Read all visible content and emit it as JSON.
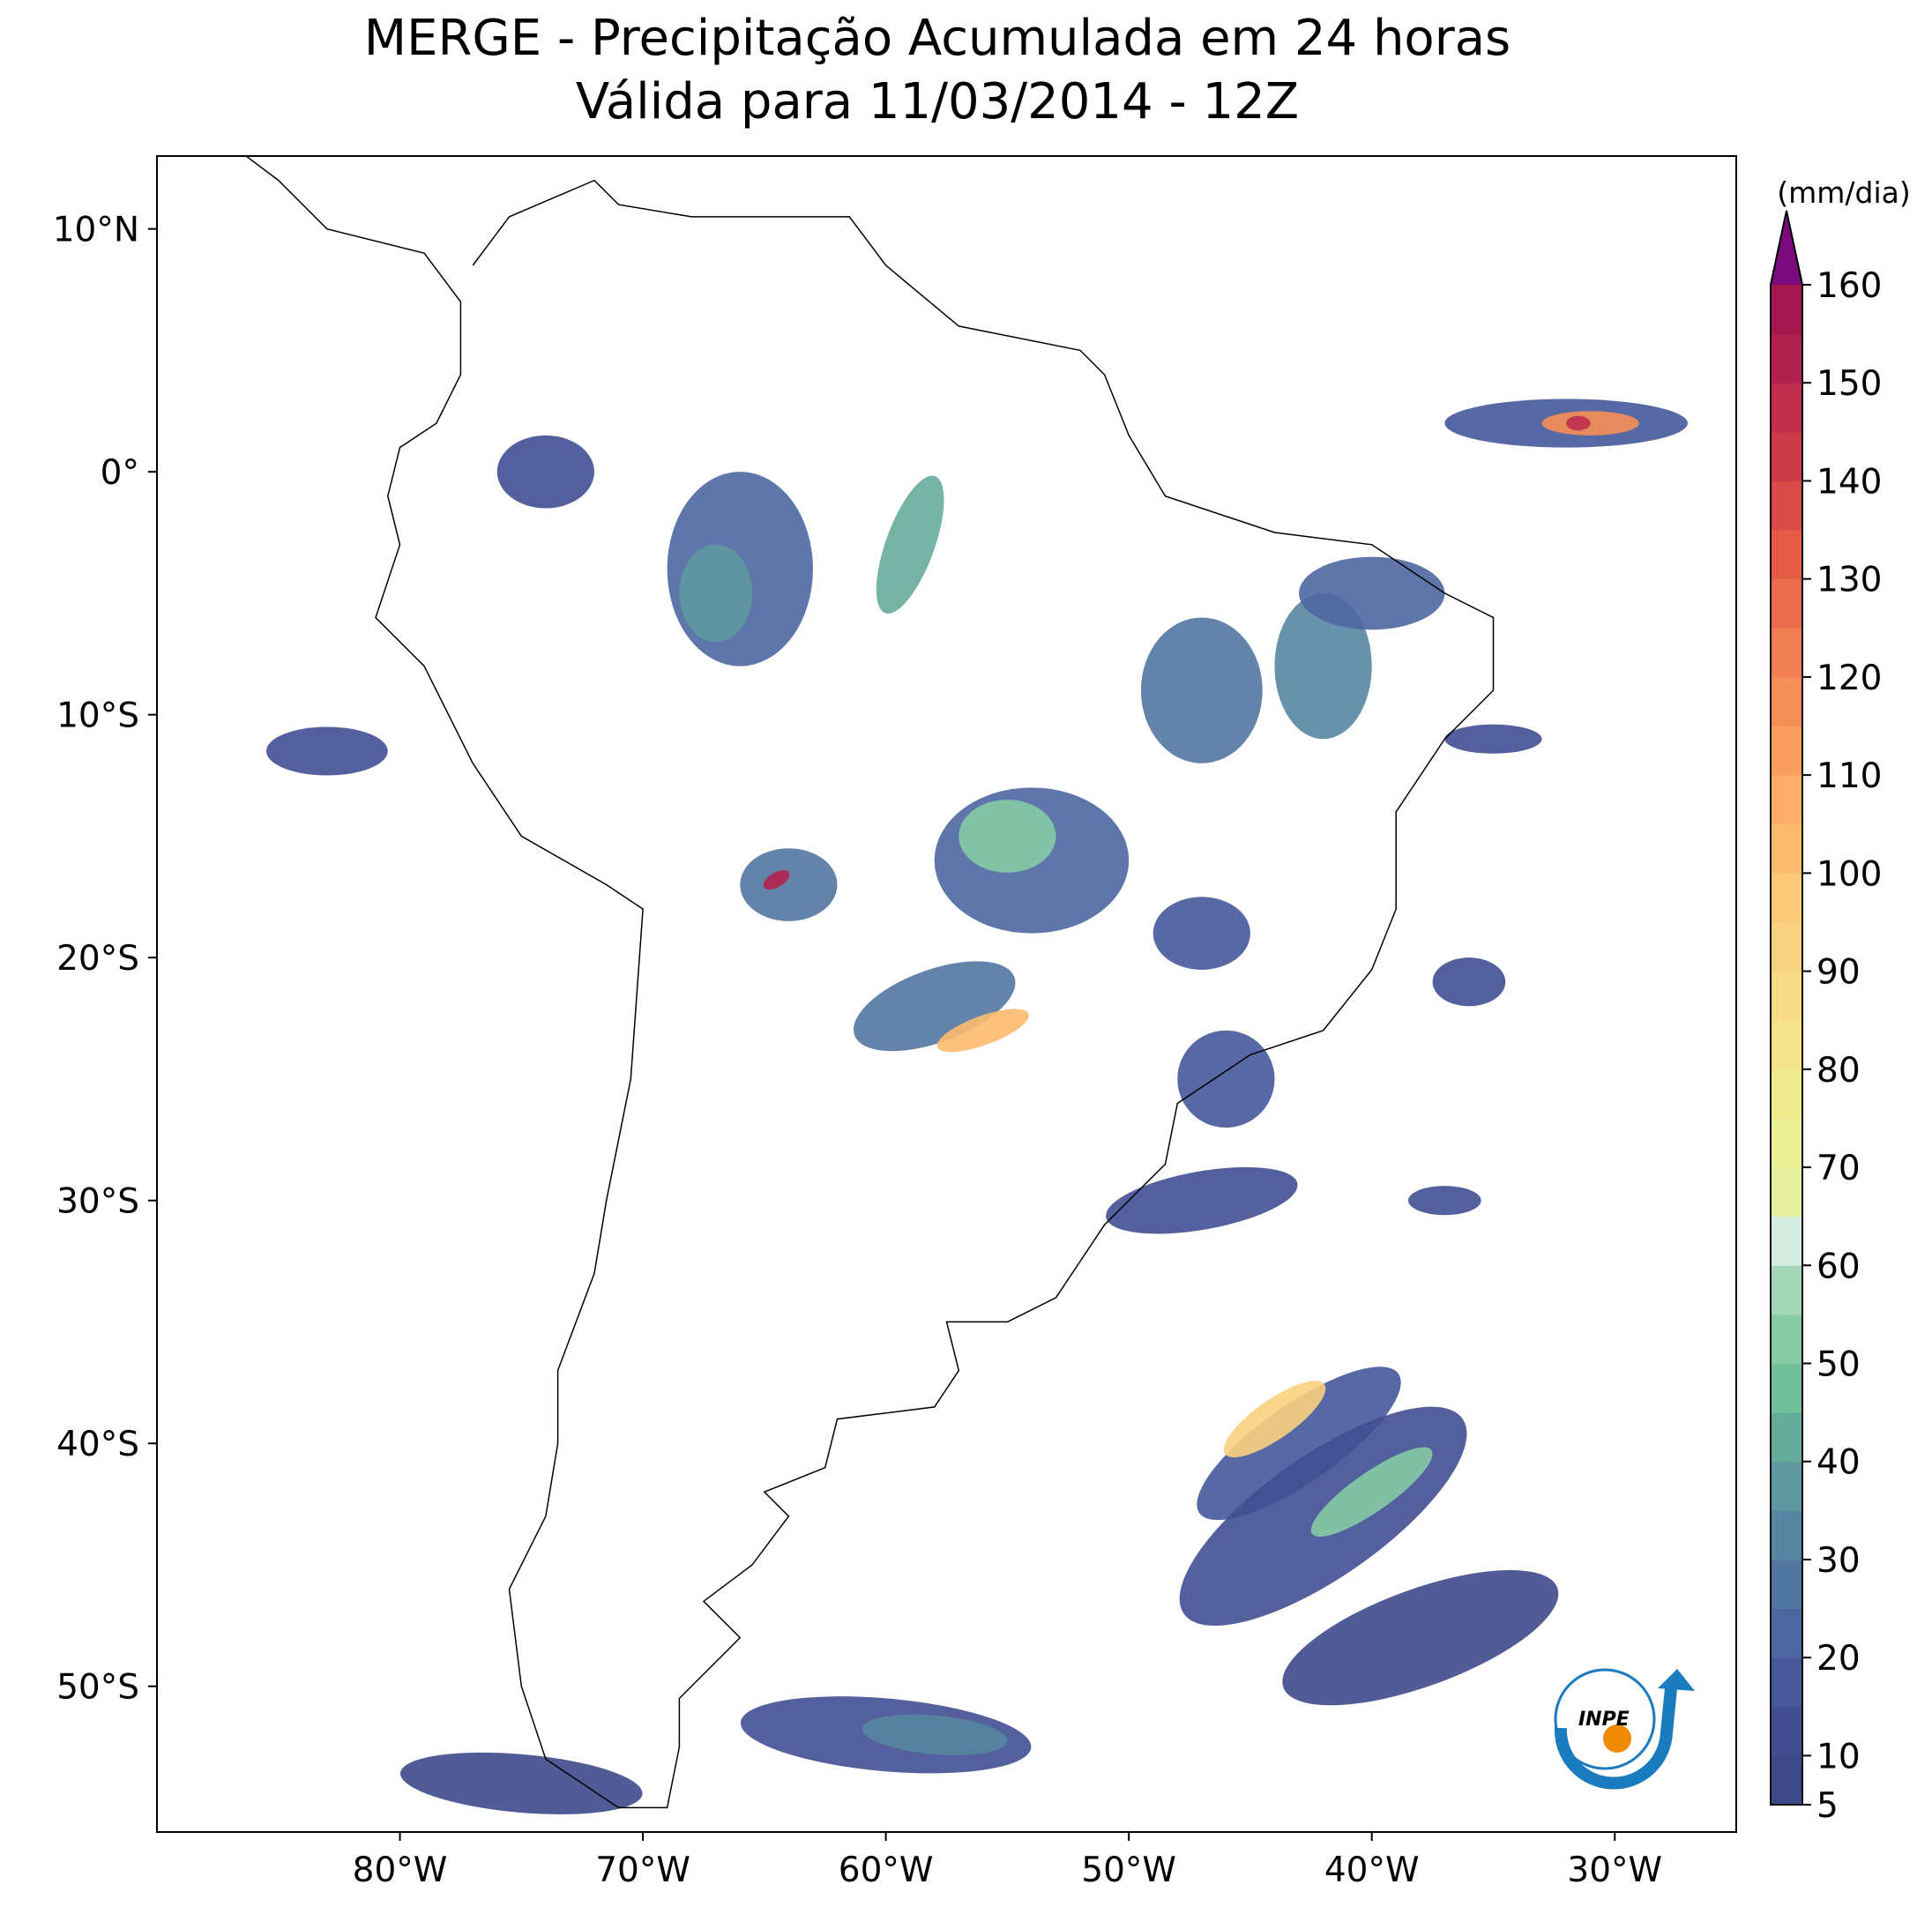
{
  "title": "MERGE - Precipitação Acumulada em 24 horas",
  "subtitle": "Válida para 11/03/2014 - 12Z",
  "map": {
    "xlim": [
      -90,
      -25
    ],
    "ylim": [
      -56,
      13
    ],
    "xticks": [
      {
        "value": -80,
        "label": "80°W"
      },
      {
        "value": -70,
        "label": "70°W"
      },
      {
        "value": -60,
        "label": "60°W"
      },
      {
        "value": -50,
        "label": "50°W"
      },
      {
        "value": -40,
        "label": "40°W"
      },
      {
        "value": -30,
        "label": "30°W"
      }
    ],
    "yticks": [
      {
        "value": 10,
        "label": "10°N"
      },
      {
        "value": 0,
        "label": "0°"
      },
      {
        "value": -10,
        "label": "10°S"
      },
      {
        "value": -20,
        "label": "20°S"
      },
      {
        "value": -30,
        "label": "30°S"
      },
      {
        "value": -40,
        "label": "40°S"
      },
      {
        "value": -50,
        "label": "50°S"
      }
    ]
  },
  "colorbar": {
    "label": "(mm/dia)",
    "levels": [
      5,
      10,
      15,
      20,
      25,
      30,
      35,
      40,
      45,
      50,
      55,
      60,
      65,
      70,
      75,
      80,
      85,
      90,
      95,
      100,
      105,
      110,
      115,
      120,
      125,
      130,
      135,
      140,
      145,
      150,
      155,
      160
    ],
    "colors": [
      "#3e4989",
      "#414e92",
      "#46589a",
      "#4c67a0",
      "#5276a1",
      "#5886a0",
      "#5f98a0",
      "#66ac9a",
      "#70c09b",
      "#86cba5",
      "#a4d7b8",
      "#d4ebe2",
      "#e4f09b",
      "#ebef95",
      "#f0ea8e",
      "#f4e38b",
      "#f7dc85",
      "#f9d27f",
      "#fbc877",
      "#fcbb6f",
      "#fcad68",
      "#fa9f60",
      "#f78f58",
      "#f27e51",
      "#ec6d4c",
      "#e45b48",
      "#da4b48",
      "#cd3b4a",
      "#bf2e4c",
      "#b0214d",
      "#a1174e"
    ],
    "extend_color": "#7d0a7d",
    "ticks": [
      5,
      10,
      20,
      30,
      40,
      50,
      60,
      70,
      80,
      90,
      100,
      110,
      120,
      130,
      140,
      150,
      160
    ]
  },
  "logo_text": "INPE"
}
